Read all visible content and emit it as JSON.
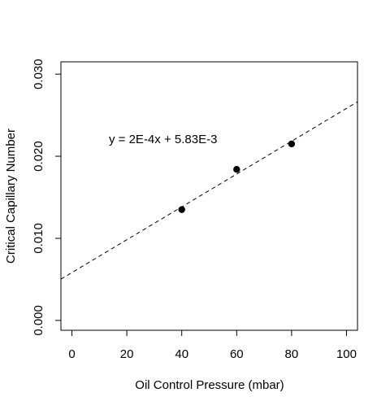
{
  "chart_data": {
    "type": "scatter",
    "title": "",
    "xlabel": "Oil Control Pressure (mbar)",
    "ylabel": "Critical Capillary Number",
    "xlim": [
      -4,
      104
    ],
    "ylim": [
      -0.0012,
      0.0315
    ],
    "x_ticks": [
      0,
      20,
      40,
      60,
      80,
      100
    ],
    "x_tick_labels": [
      "0",
      "20",
      "40",
      "60",
      "80",
      "100"
    ],
    "y_ticks": [
      0.0,
      0.01,
      0.02,
      0.03
    ],
    "y_tick_labels": [
      "0.000",
      "0.010",
      "0.020",
      "0.030"
    ],
    "series": [
      {
        "x": [
          40,
          60,
          80
        ],
        "y": [
          0.0135,
          0.0184,
          0.0215
        ],
        "marker": "filled-circle",
        "color": "#000000"
      }
    ],
    "fit_line": {
      "slope": 0.0002,
      "intercept": 0.00583,
      "style": "dashed",
      "color": "#000000"
    },
    "annotation": "y = 2E-4x + 5.83E-3",
    "grid": false,
    "legend": "none"
  }
}
